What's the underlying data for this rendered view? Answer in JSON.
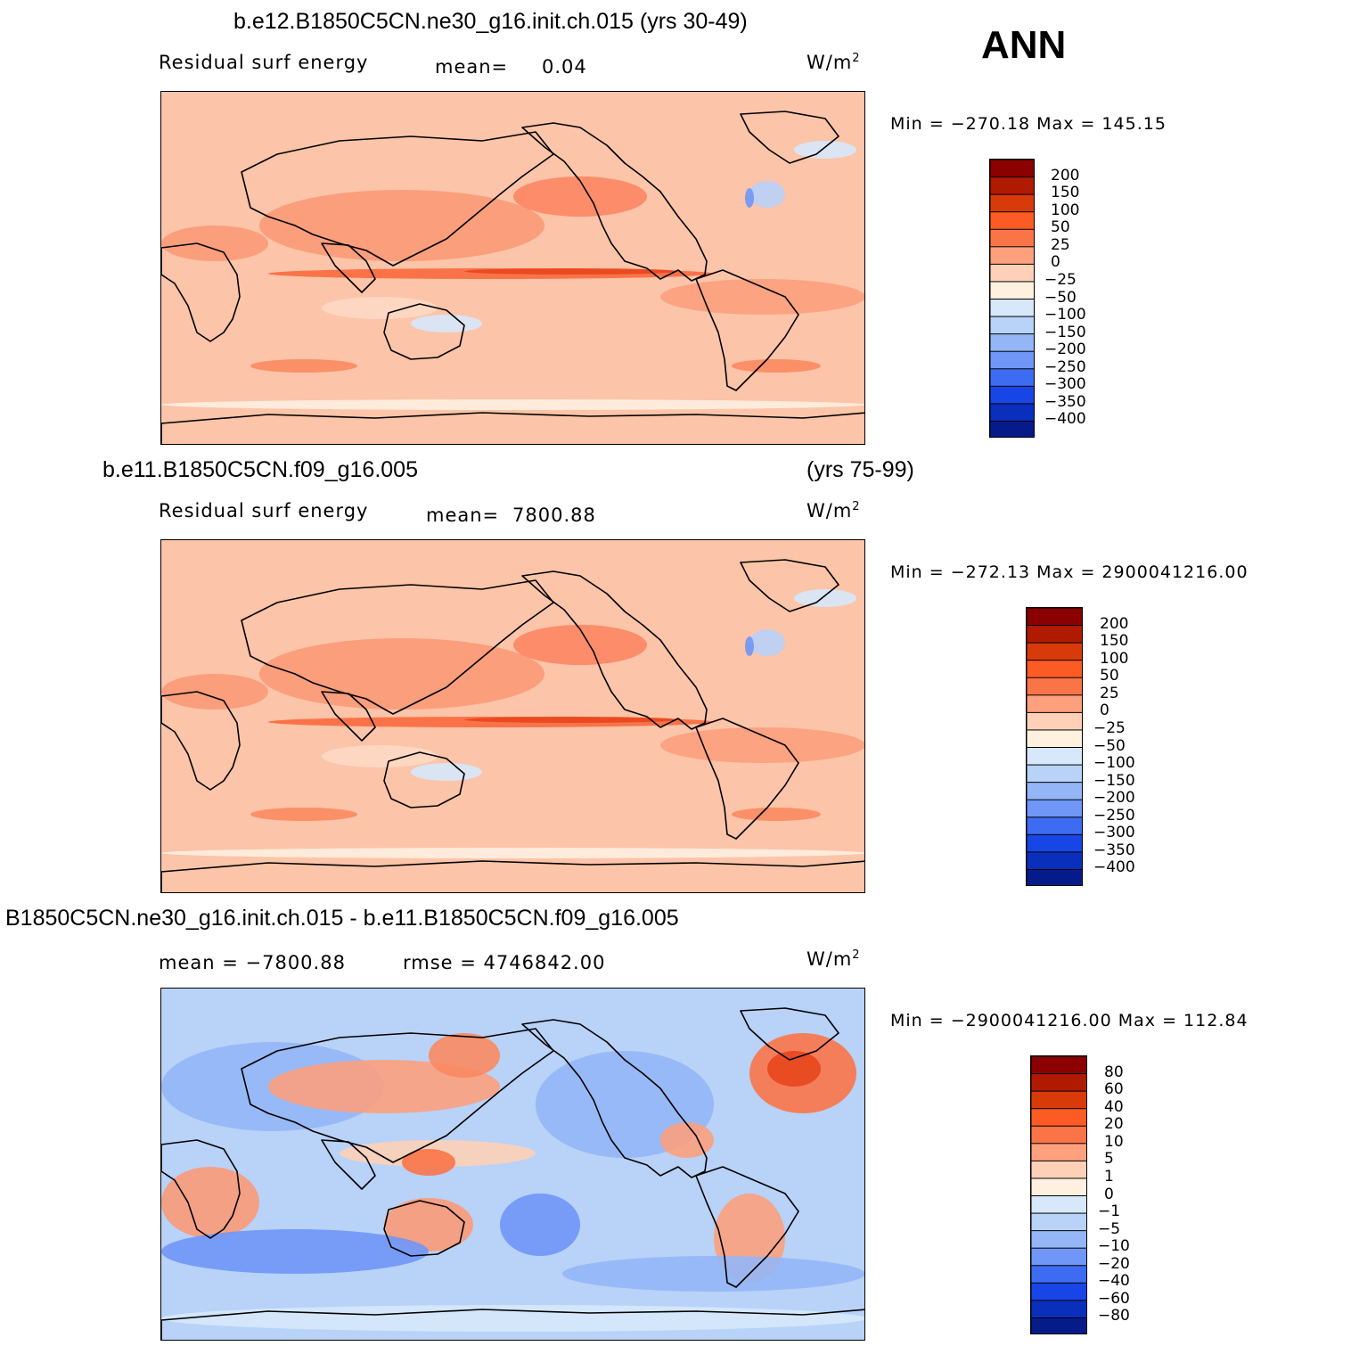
{
  "season": "ANN",
  "units_base": "W/m",
  "units_exp": "2",
  "panels": [
    {
      "id": "top",
      "title": "b.e12.B1850C5CN.ne30_g16.init.ch.015 (yrs 30-49)",
      "variable": "Residual surf energy",
      "stat_label": "mean=",
      "stat_value": "0.04",
      "minmax": "Min = −270.18 Max = 145.15"
    },
    {
      "id": "middle",
      "title": "b.e11.B1850C5CN.f09_g16.005",
      "title_years": "(yrs 75-99)",
      "variable": "Residual surf energy",
      "stat_label": "mean=",
      "stat_value": "7800.88",
      "minmax": "Min = −272.13 Max = 2900041216.00"
    },
    {
      "id": "bottom",
      "title": "B1850C5CN.ne30_g16.init.ch.015 - b.e11.B1850C5CN.f09_g16.005",
      "mean_text": "mean = −7800.88",
      "rmse_text": "rmse = 4746842.00",
      "minmax": "Min = −2900041216.00 Max = 112.84"
    }
  ],
  "chart_data": [
    {
      "type": "heatmap",
      "title": "b.e12.B1850C5CN.ne30_g16.init.ch.015 (yrs 30-49)",
      "variable": "Residual surf energy",
      "units": "W/m2",
      "mean": 0.04,
      "min": -270.18,
      "max": 145.15,
      "colorbar_levels": [
        "200",
        "150",
        "100",
        "50",
        "25",
        "0",
        "−25",
        "−50",
        "−100",
        "−150",
        "−200",
        "−250",
        "−300",
        "−350",
        "−400"
      ],
      "colorbar_colors": [
        "#8b0000",
        "#b01a00",
        "#d93a0a",
        "#fc5b23",
        "#fb7448",
        "#fca07d",
        "#fdd0b7",
        "#fff0e0",
        "#d6e8fa",
        "#b8d2f8",
        "#95b6f6",
        "#7096f7",
        "#3d6cf2",
        "#1846e6",
        "#0a2fbd",
        "#061b8a"
      ]
    },
    {
      "type": "heatmap",
      "title": "b.e11.B1850C5CN.f09_g16.005 (yrs 75-99)",
      "variable": "Residual surf energy",
      "units": "W/m2",
      "mean": 7800.88,
      "min": -272.13,
      "max": 2900041216.0,
      "colorbar_levels": [
        "200",
        "150",
        "100",
        "50",
        "25",
        "0",
        "−25",
        "−50",
        "−100",
        "−150",
        "−200",
        "−250",
        "−300",
        "−350",
        "−400"
      ],
      "colorbar_colors": [
        "#8b0000",
        "#b01a00",
        "#d93a0a",
        "#fc5b23",
        "#fb7448",
        "#fca07d",
        "#fdd0b7",
        "#fff0e0",
        "#d6e8fa",
        "#b8d2f8",
        "#95b6f6",
        "#7096f7",
        "#3d6cf2",
        "#1846e6",
        "#0a2fbd",
        "#061b8a"
      ]
    },
    {
      "type": "heatmap",
      "title": "B1850C5CN.ne30_g16.init.ch.015 - b.e11.B1850C5CN.f09_g16.005",
      "units": "W/m2",
      "mean": -7800.88,
      "rmse": 4746842.0,
      "min": -2900041216.0,
      "max": 112.84,
      "colorbar_levels": [
        "80",
        "60",
        "40",
        "20",
        "10",
        "5",
        "1",
        "0",
        "−1",
        "−5",
        "−10",
        "−20",
        "−40",
        "−60",
        "−80"
      ],
      "colorbar_colors": [
        "#8b0000",
        "#b01a00",
        "#d93a0a",
        "#fc5b23",
        "#fb7448",
        "#fca07d",
        "#fdd0b7",
        "#fff0e0",
        "#d6e8fa",
        "#b8d2f8",
        "#95b6f6",
        "#7096f7",
        "#3d6cf2",
        "#1846e6",
        "#0a2fbd",
        "#061b8a"
      ]
    }
  ]
}
